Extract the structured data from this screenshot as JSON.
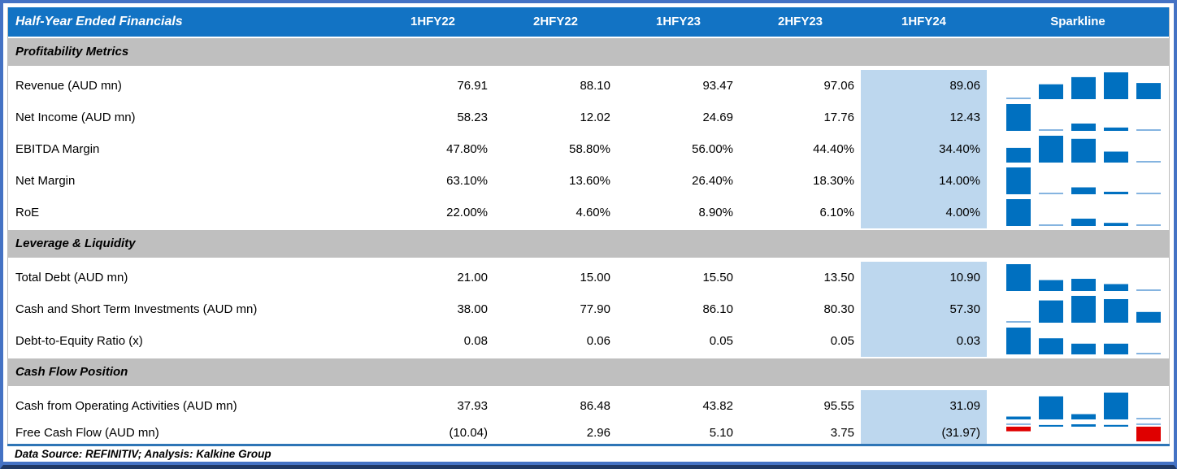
{
  "colors": {
    "frame_blue": "#4472C4",
    "frame_navy": "#1F3864",
    "header_blue": "#1273C4",
    "section_gray": "#BFBFBF",
    "highlight_blue": "#BDD7EE",
    "bar_blue": "#0070C0",
    "bar_red": "#DF0000",
    "axis_light_blue": "#85B4E0",
    "rule_blue": "#2E75B6"
  },
  "footer": {
    "text": "Data Source: REFINITIV; Analysis: Kalkine Group"
  },
  "chart_data": {
    "type": "table",
    "title": "Half-Year Ended Financials",
    "column_headers": [
      "1HFY22",
      "2HFY22",
      "1HFY23",
      "2HFY23",
      "1HFY24"
    ],
    "sparkline_header": "Sparkline",
    "highlighted_column": "1HFY24",
    "sparkline_type": "bar",
    "sparkline_note": "Per-row column sparklines; axis min = row minimum (min shows as thin light line); negative values drawn in red below zero axis",
    "sections": [
      {
        "title": "Profitability Metrics",
        "rows": [
          {
            "label": "Revenue (AUD mn)",
            "display": [
              "76.91",
              "88.10",
              "93.47",
              "97.06",
              "89.06"
            ],
            "values": [
              76.91,
              88.1,
              93.47,
              97.06,
              89.06
            ]
          },
          {
            "label": "Net Income (AUD mn)",
            "display": [
              "58.23",
              "12.02",
              "24.69",
              "17.76",
              "12.43"
            ],
            "values": [
              58.23,
              12.02,
              24.69,
              17.76,
              12.43
            ]
          },
          {
            "label": "EBITDA Margin",
            "display": [
              "47.80%",
              "58.80%",
              "56.00%",
              "44.40%",
              "34.40%"
            ],
            "values": [
              47.8,
              58.8,
              56.0,
              44.4,
              34.4
            ]
          },
          {
            "label": "Net Margin",
            "display": [
              "63.10%",
              "13.60%",
              "26.40%",
              "18.30%",
              "14.00%"
            ],
            "values": [
              63.1,
              13.6,
              26.4,
              18.3,
              14.0
            ]
          },
          {
            "label": "RoE",
            "display": [
              "22.00%",
              "4.60%",
              "8.90%",
              "6.10%",
              "4.00%"
            ],
            "values": [
              22.0,
              4.6,
              8.9,
              6.1,
              4.0
            ]
          }
        ]
      },
      {
        "title": "Leverage & Liquidity",
        "rows": [
          {
            "label": "Total Debt (AUD mn)",
            "display": [
              "21.00",
              "15.00",
              "15.50",
              "13.50",
              "10.90"
            ],
            "values": [
              21.0,
              15.0,
              15.5,
              13.5,
              10.9
            ]
          },
          {
            "label": "Cash and Short Term Investments (AUD mn)",
            "display": [
              "38.00",
              "77.90",
              "86.10",
              "80.30",
              "57.30"
            ],
            "values": [
              38.0,
              77.9,
              86.1,
              80.3,
              57.3
            ]
          },
          {
            "label": "Debt-to-Equity Ratio (x)",
            "display": [
              "0.08",
              "0.06",
              "0.05",
              "0.05",
              "0.03"
            ],
            "values": [
              0.08,
              0.06,
              0.05,
              0.05,
              0.03
            ]
          }
        ]
      },
      {
        "title": "Cash Flow Position",
        "rows": [
          {
            "label": "Cash from Operating Activities (AUD mn)",
            "display": [
              "37.93",
              "86.48",
              "43.82",
              "95.55",
              "31.09"
            ],
            "values": [
              37.93,
              86.48,
              43.82,
              95.55,
              31.09
            ]
          },
          {
            "label": "Free Cash Flow (AUD mn)",
            "display": [
              "(10.04)",
              "2.96",
              "5.10",
              "3.75",
              "(31.97)"
            ],
            "values": [
              -10.04,
              2.96,
              5.1,
              3.75,
              -31.97
            ],
            "compact": true
          }
        ]
      }
    ]
  }
}
